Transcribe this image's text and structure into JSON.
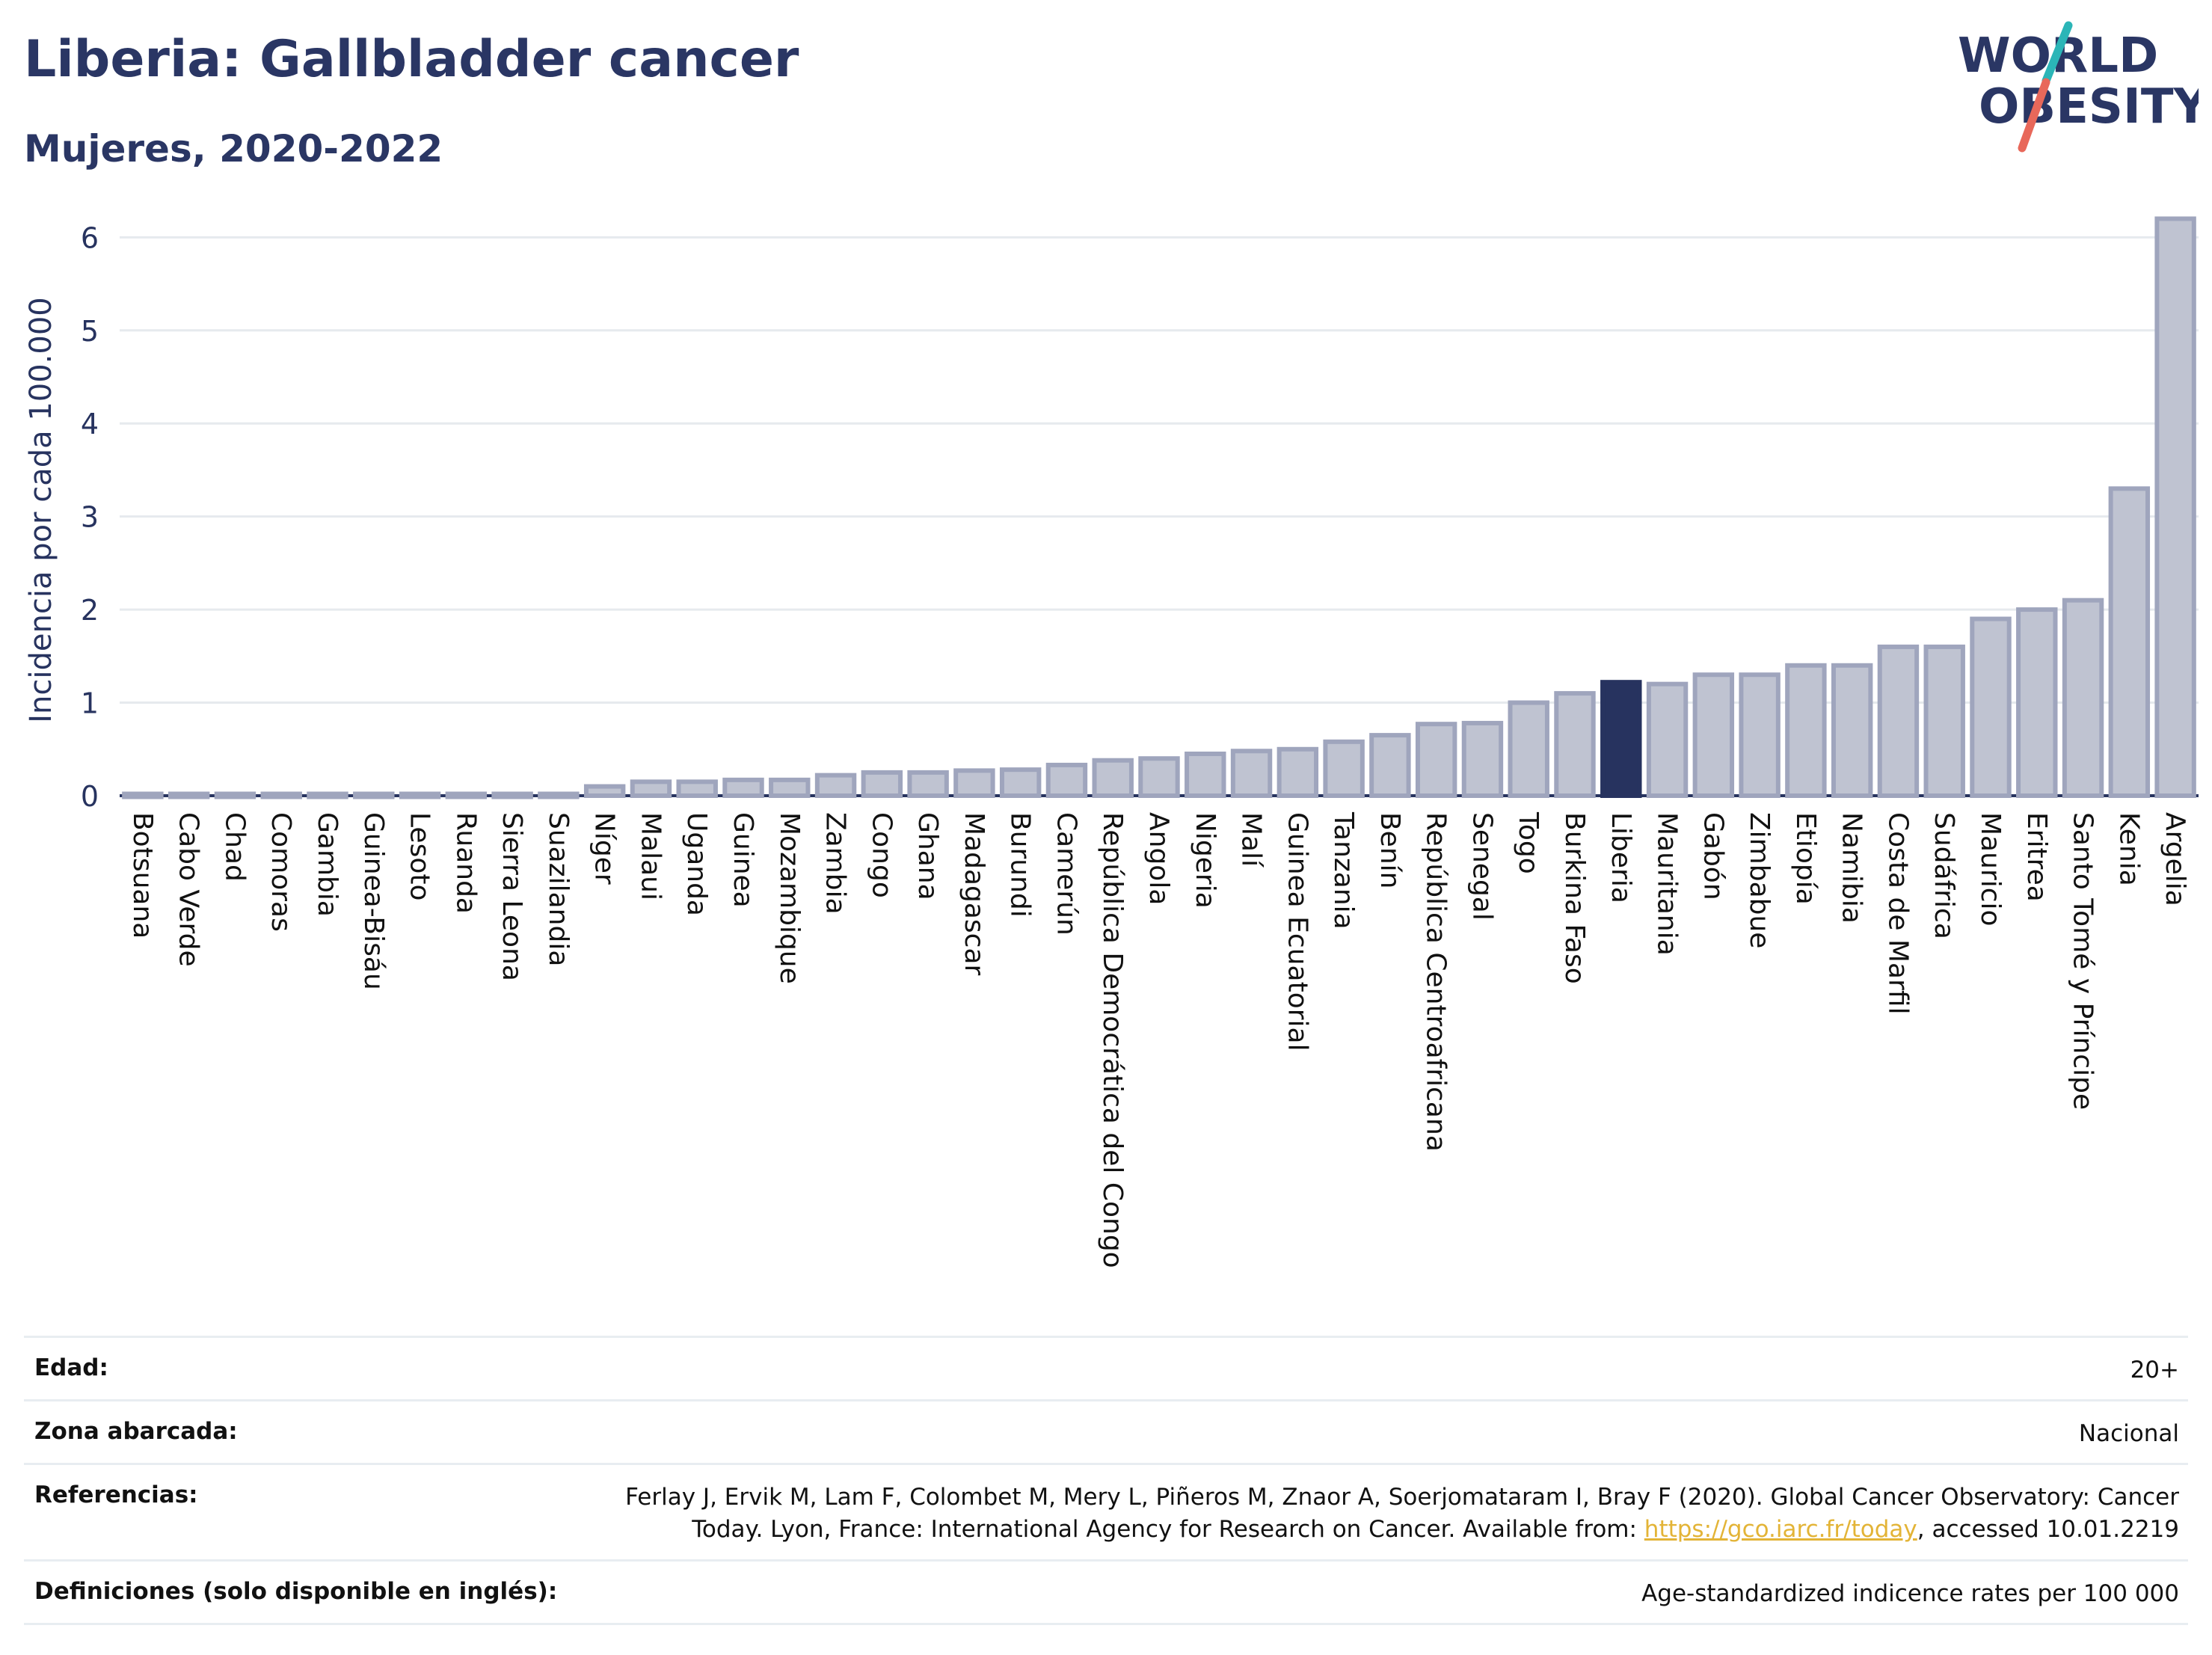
{
  "header": {
    "title": "Liberia: Gallbladder cancer",
    "subtitle": "Mujeres, 2020-2022",
    "logo_line1": "WORLD",
    "logo_line2": "OBESITY"
  },
  "colors": {
    "bar": "#bfc3d1",
    "bar_stroke": "#9fa5bd",
    "highlight": "#27335f",
    "text": "#2a3664",
    "logo_slash_top": "#2bb5b7",
    "logo_slash_bottom": "#e8685a"
  },
  "chart_data": {
    "type": "bar",
    "title": "Liberia: Gallbladder cancer",
    "subtitle": "Mujeres, 2020-2022",
    "ylabel": "Incidencia por cada 100.000",
    "xlabel": "",
    "ylim": [
      0,
      6.3
    ],
    "yticks": [
      0,
      1,
      2,
      3,
      4,
      5,
      6
    ],
    "grid": true,
    "highlight": "Liberia",
    "categories": [
      "Botsuana",
      "Cabo Verde",
      "Chad",
      "Comoras",
      "Gambia",
      "Guinea-Bisáu",
      "Lesoto",
      "Ruanda",
      "Sierra Leona",
      "Suazilandia",
      "Níger",
      "Malaui",
      "Uganda",
      "Guinea",
      "Mozambique",
      "Zambia",
      "Congo",
      "Ghana",
      "Madagascar",
      "Burundi",
      "Camerún",
      "República Democrática del Congo",
      "Angola",
      "Nigeria",
      "Malí",
      "Guinea Ecuatorial",
      "Tanzania",
      "Benín",
      "República Centroafricana",
      "Senegal",
      "Togo",
      "Burkina Faso",
      "Liberia",
      "Mauritania",
      "Gabón",
      "Zimbabue",
      "Etiopía",
      "Namibia",
      "Costa de Marfil",
      "Sudáfrica",
      "Mauricio",
      "Eritrea",
      "Santo Tomé y Príncipe",
      "Kenia",
      "Argelia"
    ],
    "values": [
      0.02,
      0.02,
      0.02,
      0.02,
      0.02,
      0.02,
      0.02,
      0.02,
      0.02,
      0.02,
      0.1,
      0.15,
      0.15,
      0.17,
      0.17,
      0.22,
      0.25,
      0.25,
      0.27,
      0.28,
      0.33,
      0.38,
      0.4,
      0.45,
      0.48,
      0.5,
      0.58,
      0.65,
      0.77,
      0.78,
      1.0,
      1.1,
      1.22,
      1.2,
      1.3,
      1.3,
      1.4,
      1.4,
      1.6,
      1.6,
      1.9,
      2.0,
      2.1,
      3.3,
      6.2
    ]
  },
  "table": {
    "rows": [
      {
        "key": "Edad:",
        "value": "20+"
      },
      {
        "key": "Zona abarcada:",
        "value": "Nacional"
      },
      {
        "key": "Referencias:",
        "value_line1": "Ferlay J, Ervik M, Lam F, Colombet M, Mery L, Piñeros M, Znaor A, Soerjomataram I, Bray F (2020). Global Cancer Observatory: Cancer",
        "value_line2_prefix": "Today. Lyon, France: International Agency for Research on Cancer. Available from: ",
        "link": "https://gco.iarc.fr/today",
        "value_line2_suffix": ", accessed 10.01.2219"
      },
      {
        "key": "Definiciones (solo disponible en inglés):",
        "value": "Age-standardized indicence rates per 100 000"
      }
    ]
  }
}
